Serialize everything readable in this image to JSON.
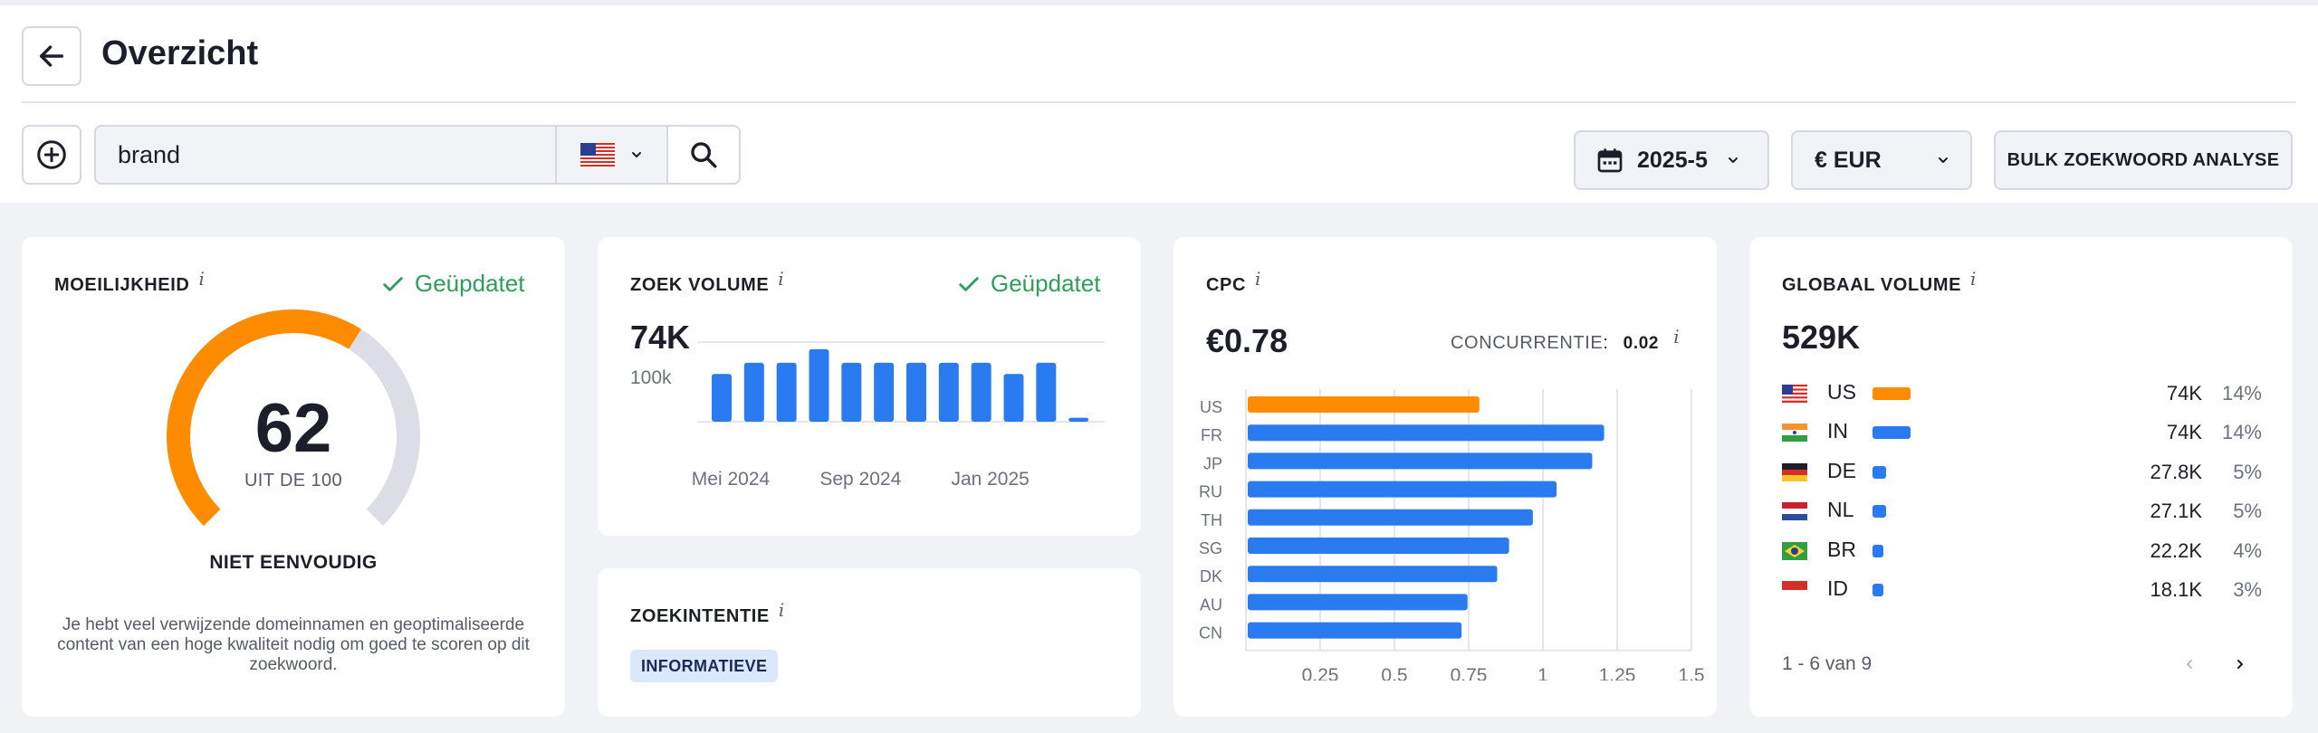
{
  "header": {
    "title": "Overzicht"
  },
  "search": {
    "value": "brand",
    "country": "US"
  },
  "toolbar": {
    "date": "2025-5",
    "currency": "€ EUR",
    "bulk_label": "BULK ZOEKWOORD ANALYSE"
  },
  "difficulty": {
    "title": "MOEILIJKHEID",
    "info": "i",
    "status": "Geüpdatet",
    "value": "62",
    "value_number": 62,
    "sub": "UIT DE 100",
    "label": "NIET EENVOUDIG",
    "description": "Je hebt veel verwijzende domeinnamen en geoptimaliseerde content van een hoge kwaliteit nodig om goed te scoren op dit zoekwoord."
  },
  "volume": {
    "title": "ZOEK VOLUME",
    "info": "i",
    "status": "Geüpdatet",
    "value": "74K",
    "chart_data": {
      "type": "bar",
      "ytick": "100k",
      "ylim": [
        0,
        100000
      ],
      "x_ticks": [
        "Mei 2024",
        "Sep 2024",
        "Jan 2025"
      ],
      "values": [
        60000,
        74000,
        74000,
        91000,
        74000,
        74000,
        74000,
        74000,
        74000,
        60000,
        74000,
        5000
      ]
    }
  },
  "intent": {
    "title": "ZOEKINTENTIE",
    "info": "i",
    "badge": "INFORMATIEVE"
  },
  "cpc": {
    "title": "CPC",
    "info": "i",
    "value": "€0.78",
    "competition_label": "CONCURRENTIE",
    "competition_value": "0.02",
    "chart_data": {
      "type": "bar",
      "orientation": "horizontal",
      "categories": [
        "US",
        "FR",
        "JP",
        "RU",
        "TH",
        "SG",
        "DK",
        "AU",
        "CN"
      ],
      "values": [
        0.78,
        1.2,
        1.16,
        1.04,
        0.96,
        0.88,
        0.84,
        0.74,
        0.72
      ],
      "highlight_color": "#ff8c00",
      "bar_color": "#2b7bf0",
      "x_ticks": [
        "0.25",
        "0.5",
        "0.75",
        "1",
        "1.25",
        "1.5"
      ],
      "xlim": [
        0,
        1.5
      ]
    }
  },
  "global": {
    "title": "GLOBAAL VOLUME",
    "info": "i",
    "value": "529K",
    "rows": [
      {
        "code": "US",
        "volume": "74K",
        "pct": "14%",
        "share": 14,
        "color": "#ff8c00"
      },
      {
        "code": "IN",
        "volume": "74K",
        "pct": "14%",
        "share": 14,
        "color": "#2b7bf0"
      },
      {
        "code": "DE",
        "volume": "27.8K",
        "pct": "5%",
        "share": 5,
        "color": "#2b7bf0"
      },
      {
        "code": "NL",
        "volume": "27.1K",
        "pct": "5%",
        "share": 5,
        "color": "#2b7bf0"
      },
      {
        "code": "BR",
        "volume": "22.2K",
        "pct": "4%",
        "share": 4,
        "color": "#2b7bf0"
      },
      {
        "code": "ID",
        "volume": "18.1K",
        "pct": "3%",
        "share": 3,
        "color": "#2b7bf0"
      }
    ],
    "pagination": "1 - 6 van 9"
  }
}
